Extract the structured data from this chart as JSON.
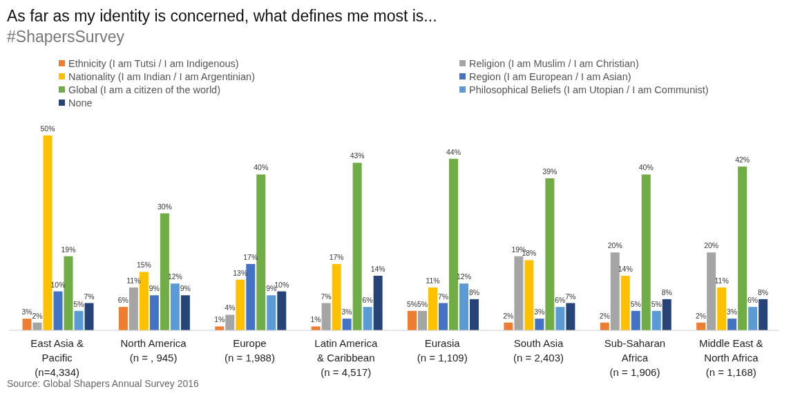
{
  "chart_data": {
    "type": "bar",
    "title": "As far as my identity is concerned, what defines me most is...",
    "subtitle": "#ShapersSurvey",
    "categories": [
      "East Asia & Pacific (n=4,334)",
      "North America (n = , 945)",
      "Europe (n = 1,988)",
      "Latin America & Caribbean (n = 4,517)",
      "Eurasia (n = 1,109)",
      "South Asia (n = 2,403)",
      "Sub-Saharan Africa (n = 1,906)",
      "Middle East & North Africa (n = 1,168)"
    ],
    "series": [
      {
        "name": "Ethnicity (I am Tutsi / I am Indigenous)",
        "color": "#ed7d31",
        "values": [
          3,
          6,
          1,
          1,
          5,
          2,
          2,
          2
        ],
        "value_labels": [
          "3%",
          "6%",
          "1%",
          "1%",
          "5%",
          "2%",
          "2%",
          "2%"
        ]
      },
      {
        "name": "Religion (I am Muslim / I am Christian)",
        "color": "#a5a5a5",
        "values": [
          2,
          11,
          4,
          7,
          5,
          19,
          20,
          20
        ],
        "value_labels": [
          "2%",
          "11%",
          "4%",
          "7%",
          "5%",
          "19%",
          "20%",
          "20%"
        ]
      },
      {
        "name": "Nationality (I am Indian / I am Argentinian)",
        "color": "#ffc000",
        "values": [
          50,
          15,
          13,
          17,
          11,
          18,
          14,
          11
        ],
        "value_labels": [
          "50%",
          "15%",
          "13%",
          "17%",
          "11%",
          "18%",
          "14%",
          "11%"
        ]
      },
      {
        "name": "Region (I am European / I am Asian)",
        "color": "#4472c4",
        "values": [
          10,
          9,
          17,
          3,
          7,
          3,
          5,
          3
        ],
        "value_labels": [
          "10%",
          "9%",
          "17%",
          "3%",
          "7%",
          "3%",
          "5%",
          "3%"
        ]
      },
      {
        "name": "Global (I am a citizen of the world)",
        "color": "#70ad47",
        "values": [
          19,
          30,
          40,
          43,
          44,
          39,
          40,
          42
        ],
        "value_labels": [
          "19%",
          "30%",
          "40%",
          "43%",
          "44%",
          "39%",
          "40%",
          "42%"
        ]
      },
      {
        "name": "Philosophical Beliefs (I am Utopian / I am Communist)",
        "color": "#5b9bd5",
        "values": [
          5,
          12,
          9,
          6,
          12,
          6,
          5,
          6
        ],
        "value_labels": [
          "5%",
          "12%",
          "9%",
          "6%",
          "12%",
          "6%",
          "5%",
          "6%"
        ]
      },
      {
        "name": "None",
        "color": "#264478",
        "values": [
          7,
          9,
          10,
          14,
          8,
          7,
          8,
          8
        ],
        "value_labels": [
          "7%",
          "9%",
          "10%",
          "14%",
          "8%",
          "7%",
          "8%",
          "8%"
        ]
      }
    ],
    "legend": "top",
    "grid": false,
    "annotations": [
      "Source: Global Shapers Annual Survey 2016"
    ]
  }
}
